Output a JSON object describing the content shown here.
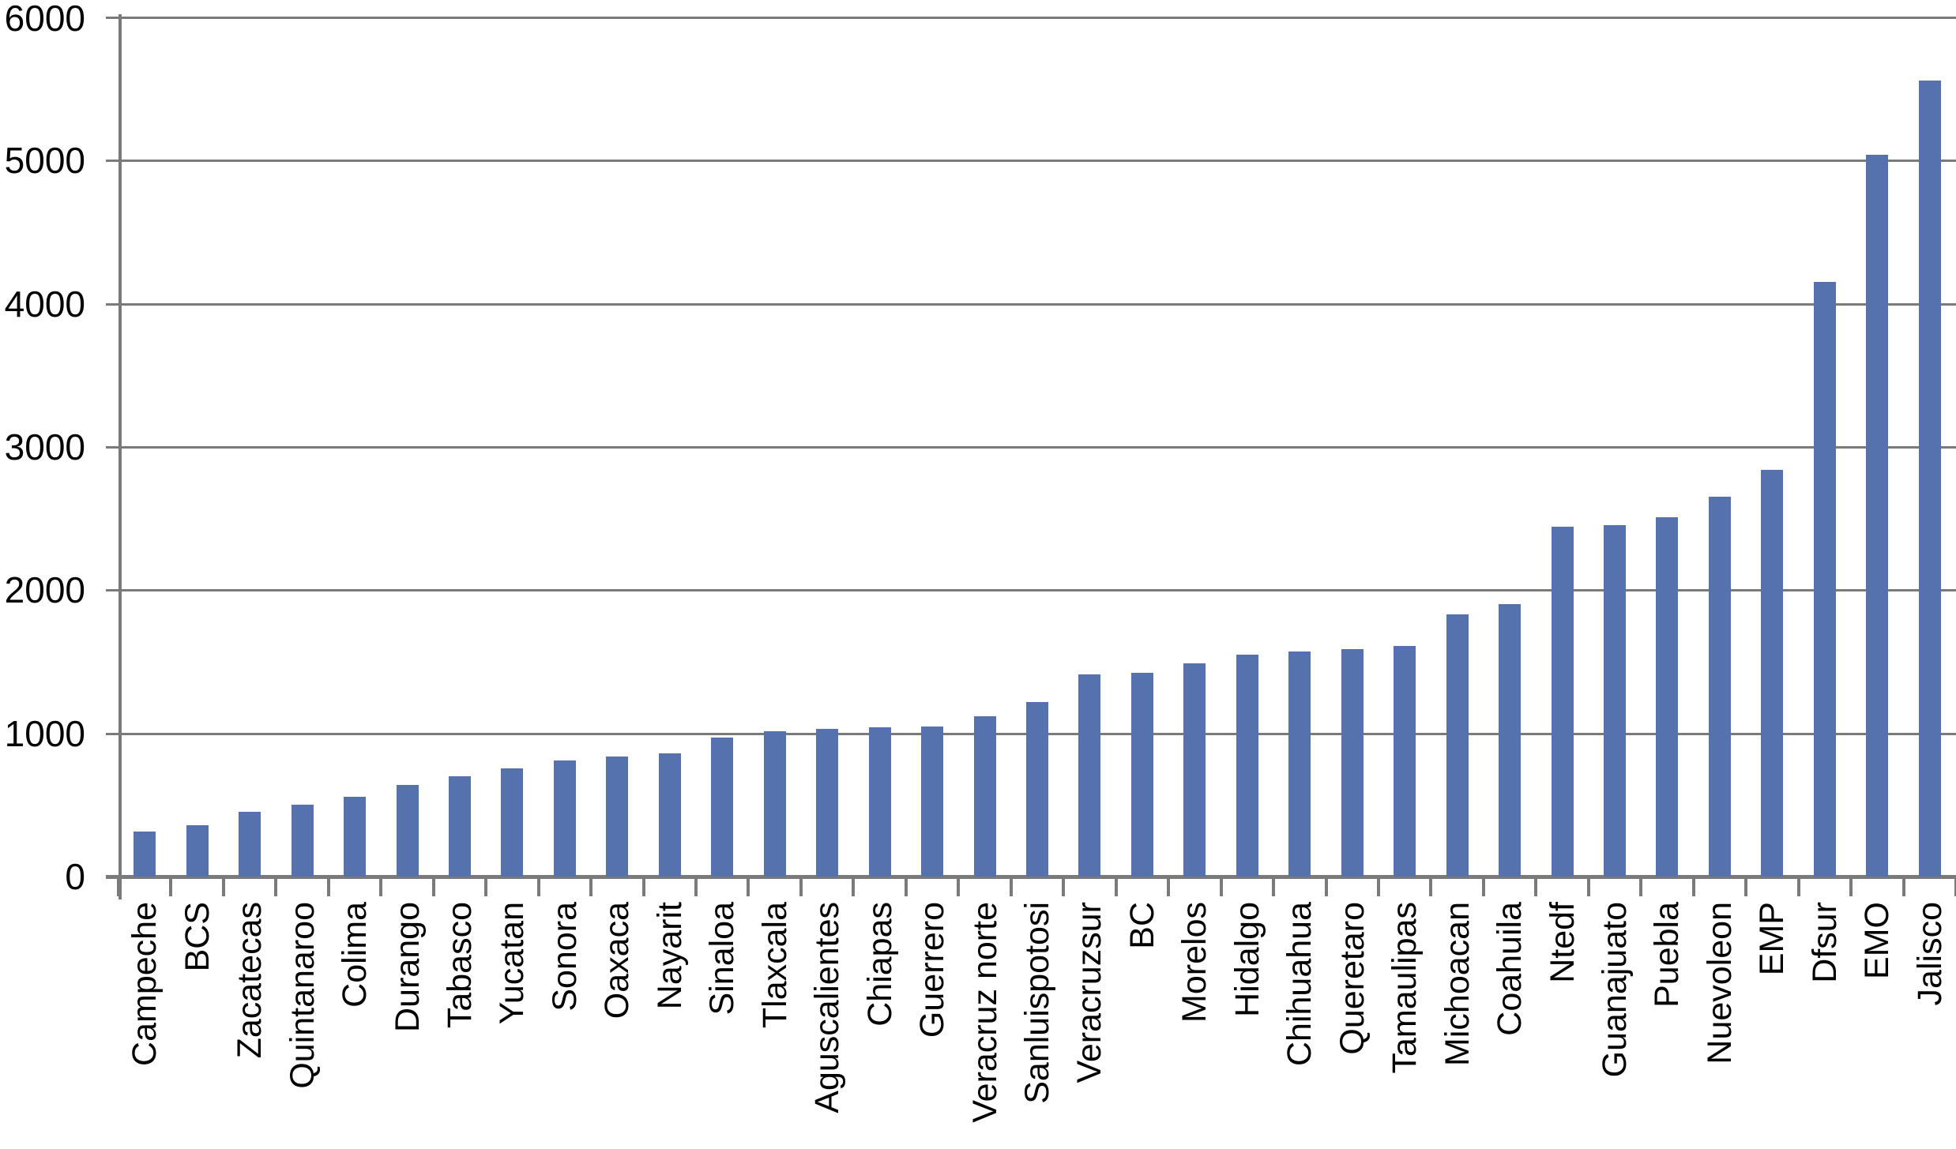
{
  "chart_data": {
    "type": "bar",
    "title": "",
    "xlabel": "",
    "ylabel": "",
    "categories": [
      "Campeche",
      "BCS",
      "Zacatecas",
      "Quintanaroo",
      "Colima",
      "Durango",
      "Tabasco",
      "Yucatan",
      "Sonora",
      "Oaxaca",
      "Nayarit",
      "Sinaloa",
      "Tlaxcala",
      "Aguscalientes",
      "Chiapas",
      "Guerrero",
      "Veracruz norte",
      "Sanluispotosi",
      "Veracruzsur",
      "BC",
      "Morelos",
      "Hidalgo",
      "Chihuahua",
      "Queretaro",
      "Tamaulipas",
      "Michoacan",
      "Coahuila",
      "Ntedf",
      "Guanajuato",
      "Puebla",
      "Nuevoleon",
      "EMP",
      "Dfsur",
      "EMO",
      "Jalisco"
    ],
    "values": [
      315,
      360,
      450,
      500,
      555,
      640,
      700,
      755,
      810,
      840,
      860,
      970,
      1015,
      1030,
      1045,
      1050,
      1120,
      1220,
      1410,
      1425,
      1490,
      1550,
      1570,
      1590,
      1610,
      1830,
      1900,
      2445,
      2455,
      2510,
      2655,
      2840,
      4150,
      5040,
      5560
    ],
    "ylim": [
      0,
      6000
    ],
    "yticks": [
      0,
      1000,
      2000,
      3000,
      4000,
      5000,
      6000
    ],
    "ytick_labels": [
      "0",
      "1000",
      "2000",
      "3000",
      "4000",
      "5000",
      "6000"
    ],
    "grid": true,
    "legend": false,
    "bar_color": "#5572AF",
    "axis_color": "#7A7A7A",
    "label_color": "#000000",
    "background_color": "#FFFFFF"
  }
}
